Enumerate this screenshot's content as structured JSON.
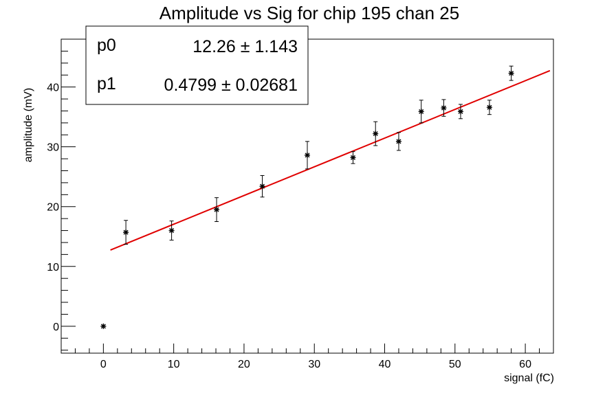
{
  "chart_data": {
    "type": "scatter",
    "title": "Amplitude vs Sig for chip 195 chan 25",
    "xlabel": "signal (fC)",
    "ylabel": "amplitude (mV)",
    "xlim": [
      -6,
      64
    ],
    "ylim": [
      -4.5,
      48
    ],
    "x_major_ticks": [
      0,
      10,
      20,
      30,
      40,
      50,
      60
    ],
    "x_minor_step": 2,
    "y_major_ticks": [
      0,
      10,
      20,
      30,
      40
    ],
    "y_minor_step": 2,
    "grid": false,
    "points": [
      {
        "x": 0.0,
        "y": 0.0,
        "err": 0.0
      },
      {
        "x": 3.2,
        "y": 15.7,
        "err": 2.0
      },
      {
        "x": 9.7,
        "y": 16.0,
        "err": 1.6
      },
      {
        "x": 16.1,
        "y": 19.5,
        "err": 2.0
      },
      {
        "x": 22.6,
        "y": 23.4,
        "err": 1.8
      },
      {
        "x": 29.0,
        "y": 28.6,
        "err": 2.3
      },
      {
        "x": 35.5,
        "y": 28.2,
        "err": 1.0
      },
      {
        "x": 38.7,
        "y": 32.2,
        "err": 2.0
      },
      {
        "x": 42.0,
        "y": 30.9,
        "err": 1.5
      },
      {
        "x": 45.2,
        "y": 35.9,
        "err": 1.9
      },
      {
        "x": 48.4,
        "y": 36.5,
        "err": 1.4
      },
      {
        "x": 50.8,
        "y": 35.9,
        "err": 1.2
      },
      {
        "x": 54.9,
        "y": 36.6,
        "err": 1.2
      },
      {
        "x": 58.0,
        "y": 42.3,
        "err": 1.2
      }
    ],
    "fit": {
      "function": "pol1",
      "color": "#e00000",
      "x_range": [
        1.0,
        63.5
      ],
      "p0": 12.26,
      "p1": 0.4799
    },
    "stats_box": {
      "placement": "top-left",
      "rows": [
        {
          "name": "p0",
          "value": "12.26 ± 1.143"
        },
        {
          "name": "p1",
          "value": "0.4799 ± 0.02681"
        }
      ]
    }
  }
}
